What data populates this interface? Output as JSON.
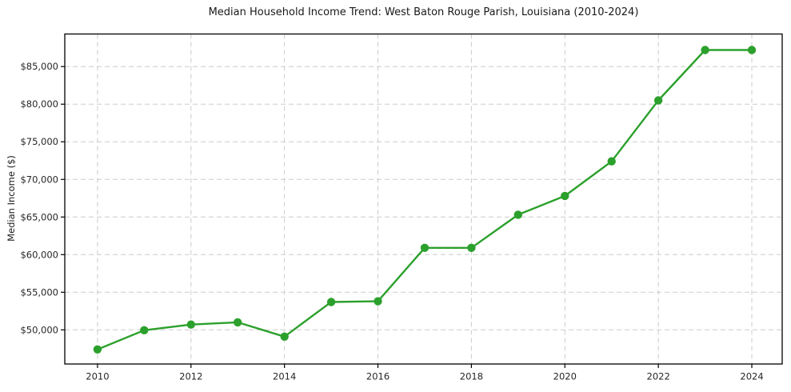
{
  "chart_data": {
    "type": "line",
    "title": "Median Household Income Trend: West Baton Rouge Parish, Louisiana (2010-2024)",
    "xlabel": "",
    "ylabel": "Median Income ($)",
    "x": [
      2010,
      2011,
      2012,
      2013,
      2014,
      2015,
      2016,
      2017,
      2018,
      2019,
      2020,
      2021,
      2022,
      2023,
      2024
    ],
    "values": [
      47400,
      49950,
      50700,
      51000,
      49100,
      53700,
      53800,
      60900,
      60900,
      65300,
      67800,
      72400,
      80500,
      87200,
      87200
    ],
    "x_ticks": [
      2010,
      2012,
      2014,
      2016,
      2018,
      2020,
      2022,
      2024
    ],
    "x_tick_labels": [
      "2010",
      "2012",
      "2014",
      "2016",
      "2018",
      "2020",
      "2022",
      "2024"
    ],
    "y_ticks": [
      50000,
      55000,
      60000,
      65000,
      70000,
      75000,
      80000,
      85000
    ],
    "y_tick_labels": [
      "$50,000",
      "$55,000",
      "$60,000",
      "$65,000",
      "$70,000",
      "$75,000",
      "$80,000",
      "$85,000"
    ],
    "xlim": [
      2009.3,
      2024.65
    ],
    "ylim": [
      45460,
      89330
    ],
    "grid": true,
    "grid_style": "dashed",
    "legend": "none",
    "line_color": "#2ca02c",
    "marker": "circle",
    "grid_color": "#cccccc",
    "axis_color": "#000000",
    "text_color": "#262626",
    "background": "#ffffff"
  }
}
